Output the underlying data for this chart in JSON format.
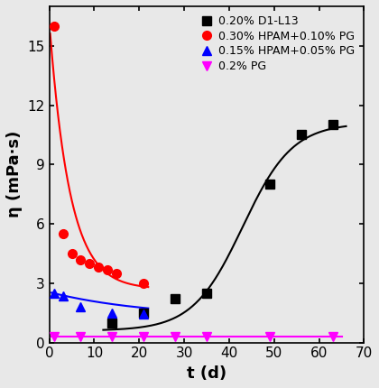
{
  "title": "",
  "xlabel": "t (d)",
  "ylabel": "η (mPa·s)",
  "xlim": [
    0,
    70
  ],
  "ylim": [
    0,
    17
  ],
  "yticks": [
    0,
    3,
    6,
    9,
    12,
    15
  ],
  "xticks": [
    0,
    10,
    20,
    30,
    40,
    50,
    60,
    70
  ],
  "series": [
    {
      "label": "0.20% D1-L13",
      "color": "black",
      "marker": "s",
      "markersize": 7,
      "x_data": [
        14,
        21,
        28,
        35,
        49,
        56,
        63
      ],
      "y_data": [
        1.0,
        1.5,
        2.2,
        2.5,
        8.0,
        10.5,
        11.0
      ]
    },
    {
      "label": "0.30% HPAM+0.10% PG",
      "color": "red",
      "marker": "o",
      "markersize": 7,
      "x_data": [
        1,
        3,
        5,
        7,
        9,
        11,
        13,
        15,
        21
      ],
      "y_data": [
        16.0,
        5.5,
        4.5,
        4.2,
        4.0,
        3.8,
        3.7,
        3.5,
        3.0
      ]
    },
    {
      "label": "0.15% HPAM+0.05% PG",
      "color": "blue",
      "marker": "^",
      "markersize": 7,
      "x_data": [
        1,
        3,
        7,
        14,
        21
      ],
      "y_data": [
        2.5,
        2.35,
        1.8,
        1.5,
        1.45
      ]
    },
    {
      "label": "0.2% PG",
      "color": "magenta",
      "marker": "v",
      "markersize": 7,
      "x_data": [
        1,
        7,
        14,
        21,
        28,
        35,
        49,
        63
      ],
      "y_data": [
        0.3,
        0.3,
        0.3,
        0.3,
        0.3,
        0.3,
        0.3,
        0.3
      ]
    }
  ],
  "legend_loc": "upper right",
  "legend_fontsize": 9,
  "tick_fontsize": 11,
  "label_fontsize": 13,
  "bg_color": "#e8e8e8"
}
